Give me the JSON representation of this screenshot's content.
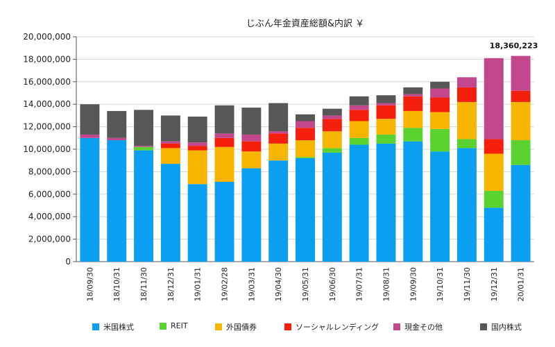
{
  "chart_data": {
    "type": "bar",
    "stacked": true,
    "title": "じぶん年金資産総額&内訳 ￥",
    "categories": [
      "18/09/30",
      "18/10/31",
      "18/11/30",
      "18/12/31",
      "19/01/31",
      "19/02/28",
      "19/03/31",
      "19/04/30",
      "19/05/31",
      "19/06/30",
      "19/07/31",
      "19/08/31",
      "19/09/30",
      "19/10/31",
      "19/11/30",
      "19/12/31",
      "20/01/31"
    ],
    "series": [
      {
        "name": "米国株式",
        "color": "#0a9ff0",
        "values": [
          11000000,
          10800000,
          9900000,
          8700000,
          6900000,
          7100000,
          8300000,
          9000000,
          9200000,
          9700000,
          10400000,
          10500000,
          10700000,
          9800000,
          10100000,
          4800000,
          8600000
        ]
      },
      {
        "name": "REIT",
        "color": "#5ad330",
        "values": [
          0,
          0,
          300000,
          0,
          0,
          0,
          0,
          0,
          100000,
          400000,
          600000,
          800000,
          1200000,
          2000000,
          800000,
          1500000,
          2200000
        ]
      },
      {
        "name": "外国債券",
        "color": "#f7b500",
        "values": [
          0,
          0,
          0,
          1400000,
          3000000,
          3100000,
          1500000,
          1500000,
          1500000,
          1500000,
          1500000,
          1400000,
          1500000,
          1500000,
          3300000,
          3300000,
          3400000
        ]
      },
      {
        "name": "ソーシャルレンディング",
        "color": "#f5200c",
        "values": [
          0,
          0,
          0,
          400000,
          400000,
          800000,
          900000,
          900000,
          1100000,
          1100000,
          1000000,
          1200000,
          1300000,
          1300000,
          1300000,
          1300000,
          1000000
        ]
      },
      {
        "name": "現金その他",
        "color": "#c2478d",
        "values": [
          300000,
          200000,
          100000,
          200000,
          300000,
          400000,
          600000,
          200000,
          600000,
          300000,
          400000,
          200000,
          200000,
          800000,
          900000,
          7200000,
          3100000
        ]
      },
      {
        "name": "国内株式",
        "color": "#575757",
        "values": [
          2700000,
          2400000,
          3200000,
          2300000,
          2300000,
          2500000,
          2400000,
          2500000,
          600000,
          600000,
          800000,
          700000,
          600000,
          600000,
          0,
          0,
          0
        ]
      }
    ],
    "annotations": [
      {
        "category": "20/01/31",
        "text": "18,360,223"
      }
    ],
    "ylim": [
      0,
      20000000
    ],
    "yticks": [
      0,
      2000000,
      4000000,
      6000000,
      8000000,
      10000000,
      12000000,
      14000000,
      16000000,
      18000000,
      20000000
    ],
    "ytick_labels": [
      "0",
      "2,000,000",
      "4,000,000",
      "6,000,000",
      "8,000,000",
      "10,000,000",
      "12,000,000",
      "14,000,000",
      "16,000,000",
      "18,000,000",
      "20,000,000"
    ],
    "grid": true,
    "legend_position": "bottom",
    "xlabel": "",
    "ylabel": ""
  }
}
